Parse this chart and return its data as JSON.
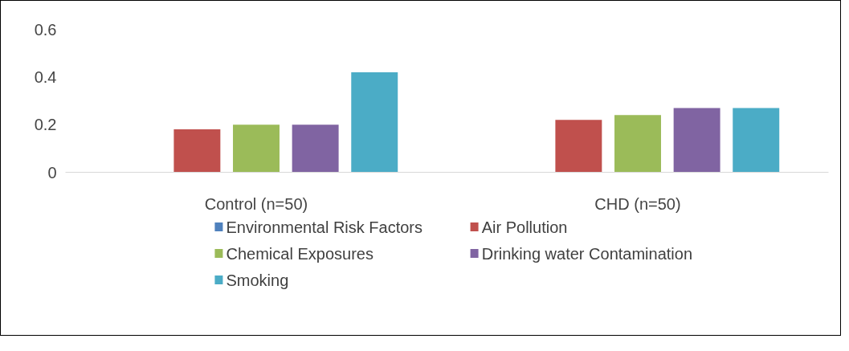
{
  "chart_data": {
    "type": "bar",
    "categories": [
      "Control (n=50)",
      "CHD (n=50)"
    ],
    "series": [
      {
        "name": "Environmental Risk Factors",
        "color": "#4f81bd",
        "values": [
          0,
          0
        ]
      },
      {
        "name": "Air Pollution",
        "color": "#c0504d",
        "values": [
          0.18,
          0.22
        ]
      },
      {
        "name": "Chemical Exposures",
        "color": "#9bbb59",
        "values": [
          0.2,
          0.24
        ]
      },
      {
        "name": "Drinking water Contamination",
        "color": "#8064a2",
        "values": [
          0.2,
          0.27
        ]
      },
      {
        "name": "Smoking",
        "color": "#4bacc6",
        "values": [
          0.42,
          0.27
        ]
      }
    ],
    "ylim": [
      0,
      0.6
    ],
    "yticks": [
      0,
      0.2,
      0.4,
      0.6
    ],
    "grid": false,
    "legend": "bottom"
  }
}
